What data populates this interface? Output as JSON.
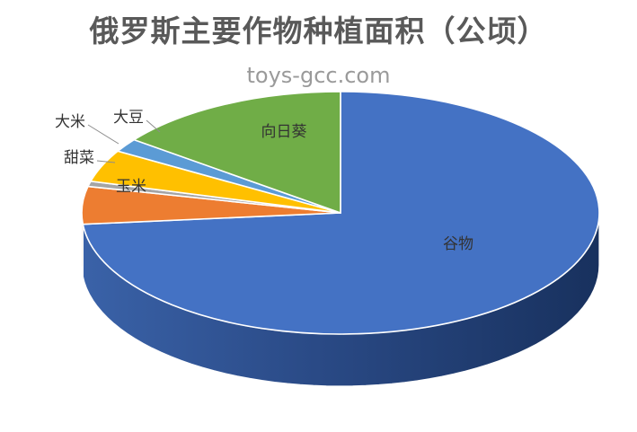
{
  "chart_data": {
    "type": "pie",
    "title": "俄罗斯主要作物种植面积（公顷）",
    "slices": [
      {
        "label": "谷物",
        "value": 73.5,
        "color": "#4472C4"
      },
      {
        "label": "玉米",
        "value": 5.0,
        "color": "#ED7D31"
      },
      {
        "label": "甜菜",
        "value": 0.7,
        "color": "#A5A5A5"
      },
      {
        "label": "大米",
        "value": 4.3,
        "color": "#FFC000"
      },
      {
        "label": "大豆",
        "value": 1.8,
        "color": "#5B9BD5"
      },
      {
        "label": "向日葵",
        "value": 14.7,
        "color": "#70AD47"
      }
    ],
    "start_angle": "12 o'clock",
    "direction": "clockwise",
    "legend": "none"
  },
  "watermark": "toys-gcc.com"
}
